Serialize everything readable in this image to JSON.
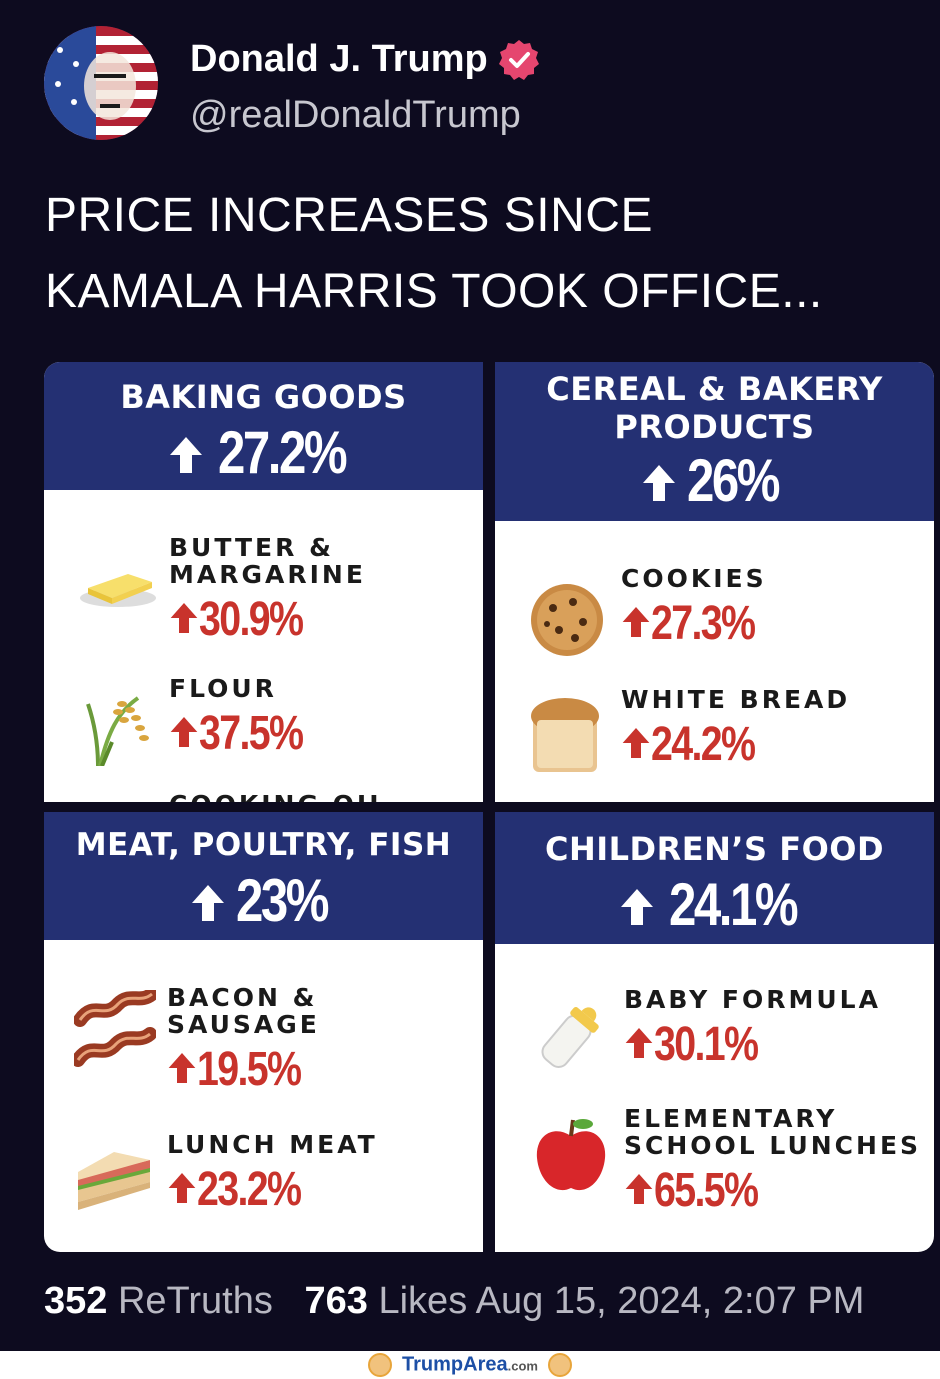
{
  "author": {
    "name": "Donald J. Trump",
    "handle": "@realDonaldTrump"
  },
  "post": {
    "lines": [
      "PRICE INCREASES SINCE",
      "KAMALA HARRIS TOOK OFFICE..."
    ]
  },
  "categories": [
    {
      "title_lines": [
        "BAKING GOODS"
      ],
      "pct": "27.2%",
      "items": [
        {
          "label_lines": [
            "BUTTER &",
            "MARGARINE"
          ],
          "pct": "30.9%",
          "icon": "butter-icon"
        },
        {
          "label_lines": [
            "FLOUR"
          ],
          "pct": "37.5%",
          "icon": "rice-plant-icon"
        }
      ],
      "cut_label": "COOKING OIL"
    },
    {
      "title_lines": [
        "CEREAL & BAKERY",
        "PRODUCTS"
      ],
      "pct": "26%",
      "items": [
        {
          "label_lines": [
            "COOKIES"
          ],
          "pct": "27.3%",
          "icon": "cookie-icon"
        },
        {
          "label_lines": [
            "WHITE BREAD"
          ],
          "pct": "24.2%",
          "icon": "bread-icon"
        }
      ]
    },
    {
      "title_lines": [
        "MEAT, POULTRY, FISH"
      ],
      "pct": "23%",
      "items": [
        {
          "label_lines": [
            "BACON &",
            "SAUSAGE"
          ],
          "pct": "19.5%",
          "icon": "bacon-icon"
        },
        {
          "label_lines": [
            "LUNCH MEAT"
          ],
          "pct": "23.2%",
          "icon": "sandwich-icon"
        }
      ]
    },
    {
      "title_lines": [
        "CHILDREN’S FOOD"
      ],
      "pct": "24.1%",
      "items": [
        {
          "label_lines": [
            "BABY FORMULA"
          ],
          "pct": "30.1%",
          "icon": "baby-bottle-icon"
        },
        {
          "label_lines": [
            "ELEMENTARY",
            "SCHOOL LUNCHES"
          ],
          "pct": "65.5%",
          "icon": "apple-icon"
        }
      ]
    }
  ],
  "stats": {
    "retruths_count": "352",
    "retruths_label": "ReTruths",
    "likes_count": "763",
    "likes_label": "Likes",
    "timestamp": "Aug 15, 2024, 2:07 PM"
  },
  "watermark": {
    "brand": "TrumpArea",
    "suffix": ".com"
  },
  "colors": {
    "background": "#0d0b1f",
    "header_blue": "#243073",
    "increase_red": "#c8332c",
    "verified_pink": "#e5466f"
  }
}
